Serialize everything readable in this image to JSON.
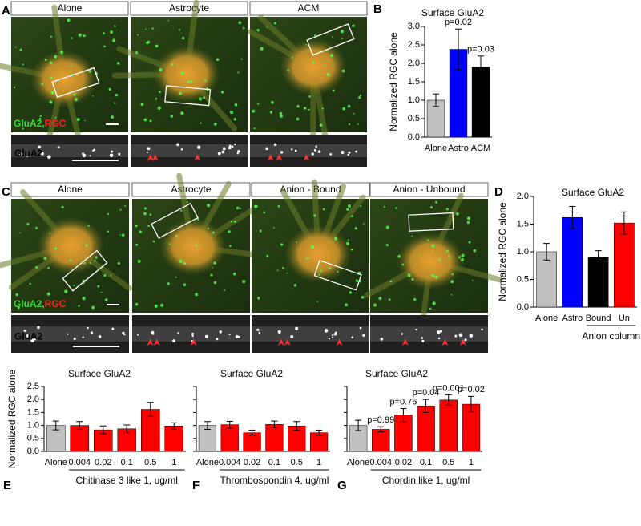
{
  "image_panels": [
    {
      "letter": "A",
      "headers": [
        "Alone",
        "Astrocyte",
        "ACM"
      ],
      "stain_green": "GluA2,",
      "stain_red": "RGC",
      "inset_label": "GluA2"
    },
    {
      "letter": "C",
      "headers": [
        "Alone",
        "Astrocyte",
        "Anion - Bound",
        "Anion - Unbound"
      ],
      "stain_green": "GluA2,",
      "stain_red": "RGC",
      "inset_label": "GluA2"
    }
  ],
  "chart_data": [
    {
      "type": "bar",
      "panel_label": "B",
      "title": "Surface GluA2",
      "ylabel": "Normalized RGC alone",
      "categories": [
        "Alone",
        "Astro",
        "ACM"
      ],
      "values": [
        1.0,
        2.38,
        1.9
      ],
      "errors": [
        0.17,
        0.55,
        0.3
      ],
      "colors": [
        "#c0c0c0",
        "#0000ff",
        "#000000"
      ],
      "annotations": [
        null,
        "p=0.02",
        "p=0.03"
      ],
      "ylim": [
        0,
        3
      ],
      "yticks": [
        {
          "value": 0,
          "label": "0.0"
        },
        0.5,
        {
          "value": 1,
          "label": "1.0"
        },
        1.5,
        {
          "value": 2,
          "label": "2.0"
        },
        2.5,
        {
          "value": 3,
          "label": "3.0"
        }
      ],
      "ytick_labels": true
    },
    {
      "type": "bar",
      "panel_label": "D",
      "title": "Surface GluA2",
      "ylabel": "Normalized RGC alone",
      "categories": [
        "Alone",
        "Astro",
        "Bound",
        "Un"
      ],
      "values": [
        1.0,
        1.62,
        0.9,
        1.52
      ],
      "errors": [
        0.15,
        0.2,
        0.12,
        0.2
      ],
      "colors": [
        "#c0c0c0",
        "#0000ff",
        "#000000",
        "#ff0000"
      ],
      "x_group": {
        "label": "Anion column",
        "span": [
          2,
          3
        ]
      },
      "ylim": [
        0,
        2
      ],
      "yticks": [
        {
          "value": 0,
          "label": "0.0"
        },
        0.5,
        {
          "value": 1,
          "label": "1.0"
        },
        1.5,
        {
          "value": 2,
          "label": "2.0"
        }
      ],
      "ytick_labels": true
    },
    {
      "type": "bar",
      "panel_label": "E",
      "title": "Surface GluA2",
      "ylabel": "Normalized RGC alone",
      "xlabel": "Chitinase 3 like 1, ug/ml",
      "xlabel_span": [
        1,
        5
      ],
      "categories": [
        "Alone",
        "0.004",
        "0.02",
        "0.1",
        "0.5",
        "1"
      ],
      "values": [
        1.0,
        1.0,
        0.83,
        0.87,
        1.62,
        0.98
      ],
      "errors": [
        0.17,
        0.15,
        0.15,
        0.15,
        0.27,
        0.12
      ],
      "colors": [
        "#c0c0c0",
        "#ff0000",
        "#ff0000",
        "#ff0000",
        "#ff0000",
        "#ff0000"
      ],
      "ylim": [
        0,
        2.5
      ],
      "yticks": [
        {
          "value": 0,
          "label": "0.0"
        },
        0.5,
        {
          "value": 1,
          "label": "1.0"
        },
        1.5,
        {
          "value": 2,
          "label": "2.0"
        },
        2.5
      ],
      "ytick_labels": true
    },
    {
      "type": "bar",
      "panel_label": "F",
      "title": "Surface GluA2",
      "xlabel": "Thrombospondin 4, ug/ml",
      "xlabel_span": [
        1,
        5
      ],
      "categories": [
        "Alone",
        "0.004",
        "0.02",
        "0.1",
        "0.5",
        "1"
      ],
      "values": [
        1.0,
        1.03,
        0.72,
        1.04,
        0.98,
        0.72
      ],
      "errors": [
        0.15,
        0.13,
        0.1,
        0.13,
        0.17,
        0.1
      ],
      "colors": [
        "#c0c0c0",
        "#ff0000",
        "#ff0000",
        "#ff0000",
        "#ff0000",
        "#ff0000"
      ],
      "ylim": [
        0,
        2.5
      ],
      "yticks": [
        0,
        0.5,
        1,
        1.5,
        2,
        2.5
      ],
      "ytick_labels": false
    },
    {
      "type": "bar",
      "panel_label": "G",
      "title": "Surface GluA2",
      "xlabel": "Chordin like 1, ug/ml",
      "xlabel_span": [
        1,
        5
      ],
      "categories": [
        "Alone",
        "0.004",
        "0.02",
        "0.1",
        "0.5",
        "1"
      ],
      "values": [
        1.0,
        0.85,
        1.4,
        1.75,
        1.98,
        1.82
      ],
      "errors": [
        0.2,
        0.1,
        0.25,
        0.25,
        0.2,
        0.3
      ],
      "colors": [
        "#c0c0c0",
        "#ff0000",
        "#ff0000",
        "#ff0000",
        "#ff0000",
        "#ff0000"
      ],
      "annotations": [
        null,
        "p=0.99",
        "p=0.76",
        "p=0.04",
        "p=0.001",
        "p=0.02"
      ],
      "ylim": [
        0,
        2.5
      ],
      "yticks": [
        0,
        0.5,
        1,
        1.5,
        2,
        2.5
      ],
      "ytick_labels": false
    }
  ]
}
